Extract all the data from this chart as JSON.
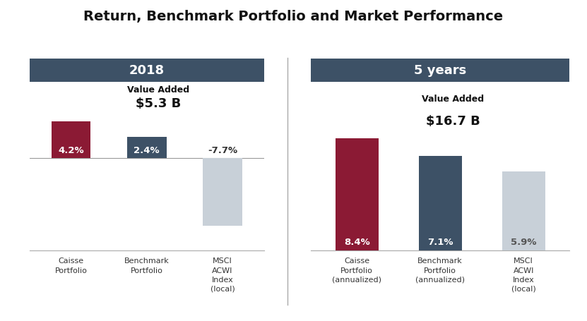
{
  "title": "Return, Benchmark Portfolio and Market Performance",
  "title_fontsize": 14,
  "section_labels": [
    "2018",
    "5 years"
  ],
  "section_header_color": "#3d5166",
  "section_header_text_color": "#ffffff",
  "left_bars": {
    "labels": [
      "Caisse\nPortfolio",
      "Benchmark\nPortfolio",
      "MSCI\nACWI\nIndex\n(local)"
    ],
    "values": [
      4.2,
      2.4,
      -7.7
    ],
    "colors": [
      "#8b1a34",
      "#3d5166",
      "#c8d0d8"
    ],
    "bar_label_colors": [
      "#ffffff",
      "#ffffff",
      "#333333"
    ],
    "value_labels": [
      "4.2%",
      "2.4%",
      "-7.7%"
    ]
  },
  "right_bars": {
    "labels": [
      "Caisse\nPortfolio\n(annualized)",
      "Benchmark\nPortfolio\n(annualized)",
      "MSCI\nACWI\nIndex\n(local)"
    ],
    "values": [
      8.4,
      7.1,
      5.9
    ],
    "colors": [
      "#8b1a34",
      "#3d5166",
      "#c8d0d8"
    ],
    "bar_label_colors": [
      "#ffffff",
      "#ffffff",
      "#555555"
    ],
    "value_labels": [
      "8.4%",
      "7.1%",
      "5.9%"
    ]
  },
  "value_added_left_line1": "Value Added",
  "value_added_left_line2": "$5.3 B",
  "value_added_right_line1": "Value Added",
  "value_added_right_line2": "$16.7 B",
  "background_color": "#ffffff",
  "divider_color": "#aaaaaa",
  "ylim_left": [
    -10.5,
    8.5
  ],
  "ylim_right": [
    0,
    12.5
  ],
  "bar_width": 0.52
}
